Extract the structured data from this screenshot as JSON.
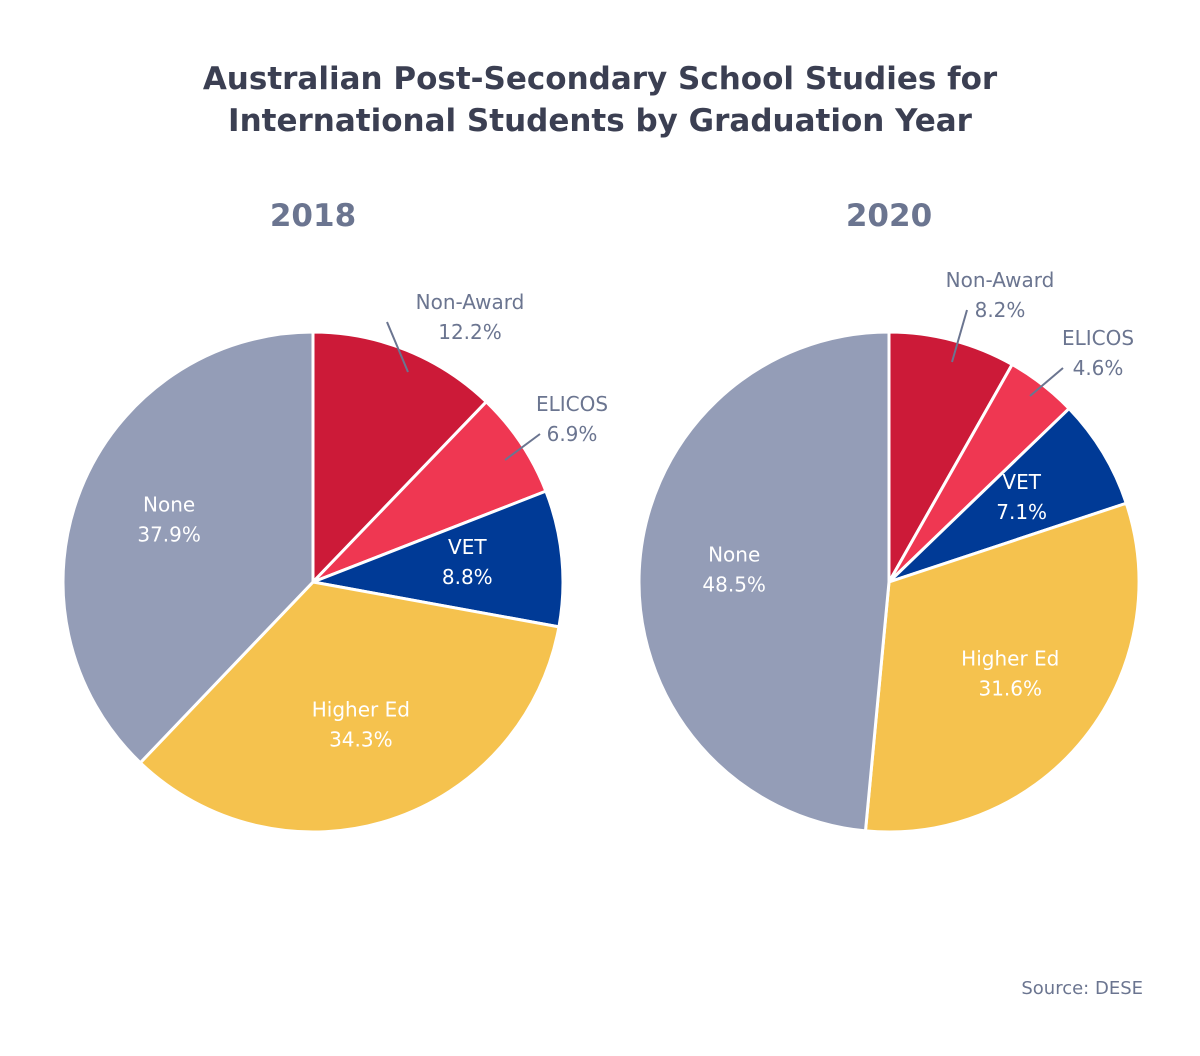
{
  "chart_data": [
    {
      "type": "pie",
      "title": "Australian Post-Secondary School Studies for International Students by Graduation Year",
      "subtitle": "2018",
      "categories": [
        "Non-Award",
        "ELICOS",
        "VET",
        "Higher Ed",
        "None"
      ],
      "values": [
        12.2,
        6.9,
        8.8,
        34.3,
        37.9
      ],
      "labels": [
        "12.2%",
        "6.9%",
        "8.8%",
        "34.3%",
        "37.9%"
      ],
      "colors": [
        "#cc1a38",
        "#ef3752",
        "#003a96",
        "#f5c24e",
        "#949db7"
      ]
    },
    {
      "type": "pie",
      "subtitle": "2020",
      "categories": [
        "Non-Award",
        "ELICOS",
        "VET",
        "Higher Ed",
        "None"
      ],
      "values": [
        8.2,
        4.6,
        7.1,
        31.6,
        48.5
      ],
      "labels": [
        "8.2%",
        "4.6%",
        "7.1%",
        "31.6%",
        "48.5%"
      ],
      "colors": [
        "#cc1a38",
        "#ef3752",
        "#003a96",
        "#f5c24e",
        "#949db7"
      ]
    }
  ],
  "title_line1": "Australian Post-Secondary School Studies for",
  "title_line2": "International Students by Graduation Year",
  "source": "Source: DESE"
}
